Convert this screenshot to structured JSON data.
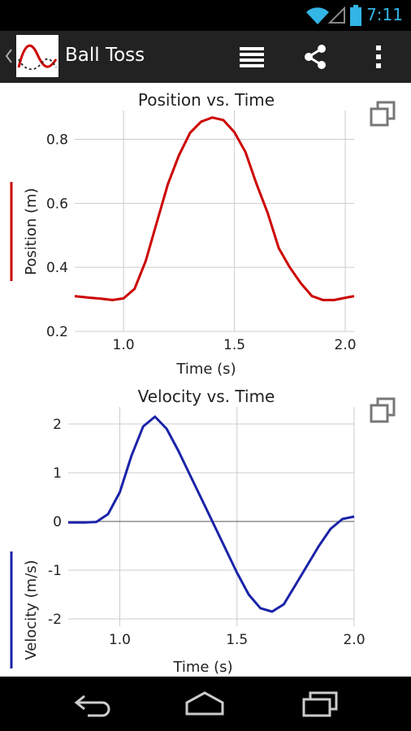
{
  "status_bar": {
    "time": "7:11",
    "icons": [
      "wifi-icon",
      "signal-icon",
      "battery-icon"
    ]
  },
  "action_bar": {
    "title": "Ball Toss",
    "icons": [
      "app-graph-icon",
      "table-view-icon",
      "share-icon",
      "overflow-menu-icon"
    ]
  },
  "nav_bar": {
    "icons": [
      "back-icon",
      "home-icon",
      "recent-apps-icon"
    ]
  },
  "colors": {
    "position": "#cc0000",
    "velocity": "#1a23a8",
    "grid": "#cccccc",
    "zero_line": "#555555"
  },
  "chart_data": [
    {
      "type": "line",
      "title": "Position vs. Time",
      "xlabel": "Time (s)",
      "ylabel": "Position (m)",
      "xlim": [
        0.78,
        2.04
      ],
      "ylim": [
        0.2,
        0.89
      ],
      "xticks": [
        1.0,
        1.5,
        2.0
      ],
      "xtick_labels": [
        "1.0",
        "1.5",
        "2.0"
      ],
      "yticks": [
        0.2,
        0.4,
        0.6,
        0.8
      ],
      "ytick_labels": [
        "0.2",
        "0.4",
        "0.6",
        "0.8"
      ],
      "grid": true,
      "series": [
        {
          "x": [
            0.78,
            0.85,
            0.9,
            0.95,
            1.0,
            1.05,
            1.1,
            1.15,
            1.2,
            1.25,
            1.3,
            1.35,
            1.4,
            1.45,
            1.5,
            1.55,
            1.6,
            1.65,
            1.7,
            1.75,
            1.8,
            1.85,
            1.9,
            1.95,
            2.0,
            2.04
          ],
          "y": [
            0.31,
            0.305,
            0.302,
            0.298,
            0.303,
            0.333,
            0.42,
            0.54,
            0.66,
            0.75,
            0.82,
            0.855,
            0.868,
            0.86,
            0.822,
            0.76,
            0.66,
            0.57,
            0.46,
            0.4,
            0.35,
            0.31,
            0.298,
            0.298,
            0.305,
            0.31
          ]
        }
      ]
    },
    {
      "type": "line",
      "title": "Velocity vs. Time",
      "xlabel": "Time (s)",
      "ylabel": "Velocity (m/s)",
      "xlim": [
        0.78,
        2.0
      ],
      "ylim": [
        -2.15,
        2.35
      ],
      "xticks": [
        1.0,
        1.5,
        2.0
      ],
      "xtick_labels": [
        "1.0",
        "1.5",
        "2.0"
      ],
      "yticks": [
        -2,
        -1,
        0,
        1,
        2
      ],
      "ytick_labels": [
        "-2",
        "-1",
        "0",
        "1",
        "2"
      ],
      "grid": true,
      "series": [
        {
          "x": [
            0.78,
            0.85,
            0.9,
            0.95,
            1.0,
            1.05,
            1.1,
            1.15,
            1.2,
            1.25,
            1.3,
            1.35,
            1.4,
            1.45,
            1.5,
            1.55,
            1.6,
            1.65,
            1.7,
            1.75,
            1.8,
            1.85,
            1.9,
            1.95,
            2.0
          ],
          "y": [
            -0.02,
            -0.02,
            -0.01,
            0.15,
            0.6,
            1.35,
            1.95,
            2.15,
            1.9,
            1.45,
            0.95,
            0.45,
            -0.05,
            -0.55,
            -1.05,
            -1.5,
            -1.78,
            -1.85,
            -1.7,
            -1.3,
            -0.9,
            -0.5,
            -0.15,
            0.05,
            0.1
          ]
        }
      ]
    }
  ]
}
